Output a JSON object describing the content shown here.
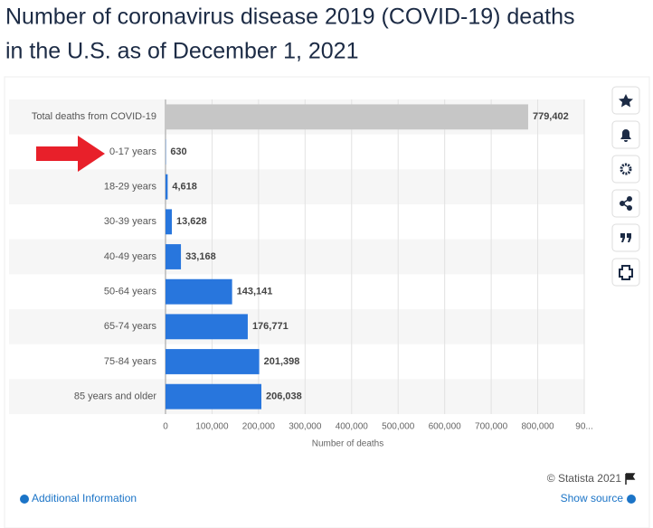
{
  "chart_data": {
    "type": "bar",
    "title": [
      "Number of coronavirus disease 2019 (COVID-19) deaths",
      "in the U.S. as of December 1, 2021"
    ],
    "categories": [
      "Total deaths from COVID-19",
      "0-17 years",
      "18-29 years",
      "30-39 years",
      "40-49 years",
      "50-64 years",
      "65-74 years",
      "75-84 years",
      "85 years and older"
    ],
    "values": [
      779402,
      630,
      4618,
      13628,
      33168,
      143141,
      176771,
      201398,
      206038
    ],
    "value_labels": [
      "779,402",
      "630",
      "4,618",
      "13,628",
      "33,168",
      "143,141",
      "176,771",
      "201,398",
      "206,038"
    ],
    "colors": [
      "#c6c6c6",
      "#2876dd",
      "#2876dd",
      "#2876dd",
      "#2876dd",
      "#2876dd",
      "#2876dd",
      "#2876dd",
      "#2876dd"
    ],
    "xlabel": "Number of deaths",
    "xlim": [
      0,
      900000
    ],
    "xticks": [
      0,
      {
        "value": 100000,
        "label": "100,000"
      },
      {
        "value": 200000,
        "label": "200,000"
      },
      {
        "value": 300000,
        "label": "300,000"
      },
      {
        "value": 400000,
        "label": "400,000"
      },
      {
        "value": 500000,
        "label": "500,000"
      },
      {
        "value": 600000,
        "label": "600,000"
      },
      {
        "value": 700000,
        "label": "700,000"
      },
      {
        "value": 800000,
        "label": "800,000"
      },
      {
        "value": 900000,
        "label": "90..."
      }
    ],
    "grid": true,
    "source": "© Statista 2021",
    "additional_info": "Additional Information",
    "show_source": "Show source"
  }
}
